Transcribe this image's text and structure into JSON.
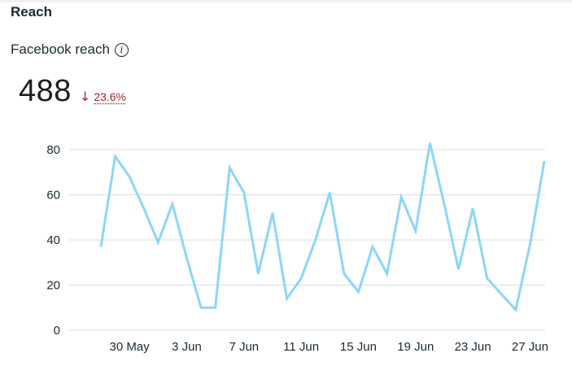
{
  "header": {
    "section_title": "Reach",
    "metric_label": "Facebook reach",
    "value": "488",
    "change": "23.6%",
    "change_direction": "down",
    "change_color": "#a8212b"
  },
  "chart_data": {
    "type": "line",
    "title": "",
    "xlabel": "",
    "ylabel": "",
    "ylim": [
      0,
      80
    ],
    "y_ticks": [
      0,
      20,
      40,
      60,
      80
    ],
    "grid": true,
    "line_color": "#8dd6f9",
    "x_tick_labels": [
      "30 May",
      "3 Jun",
      "7 Jun",
      "11 Jun",
      "15 Jun",
      "19 Jun",
      "23 Jun",
      "27 Jun"
    ],
    "x": [
      "28 May",
      "29 May",
      "30 May",
      "31 May",
      "1 Jun",
      "2 Jun",
      "3 Jun",
      "4 Jun",
      "5 Jun",
      "6 Jun",
      "7 Jun",
      "8 Jun",
      "9 Jun",
      "10 Jun",
      "11 Jun",
      "12 Jun",
      "13 Jun",
      "14 Jun",
      "15 Jun",
      "16 Jun",
      "17 Jun",
      "18 Jun",
      "19 Jun",
      "20 Jun",
      "21 Jun",
      "22 Jun",
      "23 Jun",
      "24 Jun",
      "25 Jun",
      "26 Jun",
      "27 Jun",
      "28 Jun"
    ],
    "series": [
      {
        "values": [
          37,
          77,
          68,
          54,
          39,
          56,
          32,
          10,
          10,
          72,
          61,
          25,
          52,
          14,
          23,
          40,
          61,
          25,
          17,
          37,
          25,
          59,
          44,
          83,
          56,
          27,
          54,
          23,
          16,
          9,
          38,
          75
        ]
      }
    ]
  }
}
